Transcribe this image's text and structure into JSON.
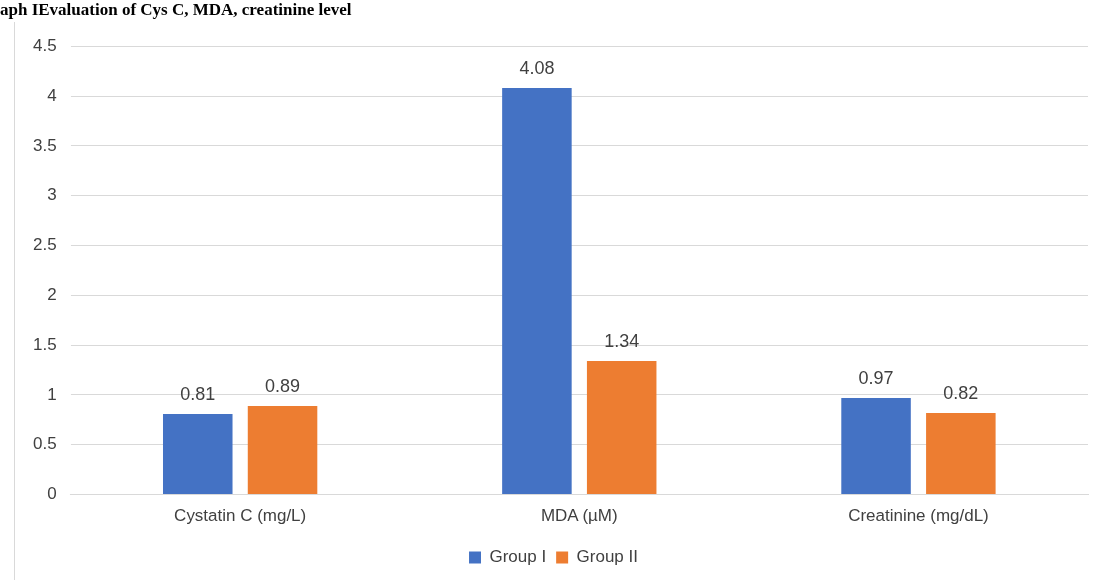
{
  "chart_data": {
    "type": "bar",
    "title": "aph IEvaluation of Cys C, MDA, creatinine level",
    "categories": [
      "Cystatin C (mg/L)",
      "MDA (µM)",
      "Creatinine (mg/dL)"
    ],
    "series": [
      {
        "name": "Group I",
        "color": "#4472c4",
        "values": [
          0.81,
          4.08,
          0.97
        ]
      },
      {
        "name": "Group II",
        "color": "#ed7d31",
        "values": [
          0.89,
          1.34,
          0.82
        ]
      }
    ],
    "ylim": [
      0,
      4.5
    ],
    "yticks": [
      0,
      0.5,
      1,
      1.5,
      2,
      2.5,
      3,
      3.5,
      4,
      4.5
    ],
    "grid": "y",
    "legend": "bottom",
    "data_labels": true
  }
}
